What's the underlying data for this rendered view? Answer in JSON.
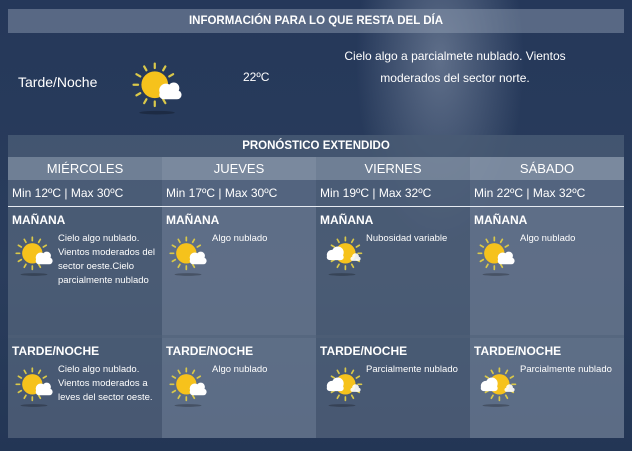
{
  "today": {
    "header": "INFORMACIÓN PARA LO QUE RESTA DEL DÍA",
    "period": "Tarde/Noche",
    "icon": "sun-cloud-icon",
    "temp": "22ºC",
    "description": "Cielo algo a parcialmete nublado. Vientos moderados del sector norte."
  },
  "forecast": {
    "title": "PRONÓSTICO EXTENDIDO",
    "days": [
      {
        "name": "MIÉRCOLES",
        "minmax": "Min 12ºC | Max 30ºC",
        "morning": {
          "label": "MAÑANA",
          "icon": "sun-cloud-icon",
          "text": "Cielo algo nublado. Vientos moderados del sector oeste.Cielo parcialmente nublado"
        },
        "night": {
          "label": "TARDE/NOCHE",
          "icon": "sun-cloud-icon",
          "text": "Cielo algo nublado. Vientos moderados a leves del sector oeste."
        }
      },
      {
        "name": "JUEVES",
        "minmax": "Min 17ºC | Max 30ºC",
        "morning": {
          "label": "MAÑANA",
          "icon": "sun-cloud-icon",
          "text": "Algo nublado"
        },
        "night": {
          "label": "TARDE/NOCHE",
          "icon": "sun-cloud-icon",
          "text": "Algo nublado"
        }
      },
      {
        "name": "VIERNES",
        "minmax": "Min 19ºC | Max 32ºC",
        "morning": {
          "label": "MAÑANA",
          "icon": "partly-cloudy-icon",
          "text": "Nubosidad variable"
        },
        "night": {
          "label": "TARDE/NOCHE",
          "icon": "partly-cloudy-icon",
          "text": "Parcialmente nublado"
        }
      },
      {
        "name": "SÁBADO",
        "minmax": "Min 22ºC | Max 32ºC",
        "morning": {
          "label": "MAÑANA",
          "icon": "sun-cloud-icon",
          "text": "Algo nublado"
        },
        "night": {
          "label": "TARDE/NOCHE",
          "icon": "partly-cloudy-icon",
          "text": "Parcialmente nublado"
        }
      }
    ]
  },
  "colors": {
    "sun": "#f6c21c",
    "ray": "#d9c84a",
    "cloud": "#ffffff"
  }
}
